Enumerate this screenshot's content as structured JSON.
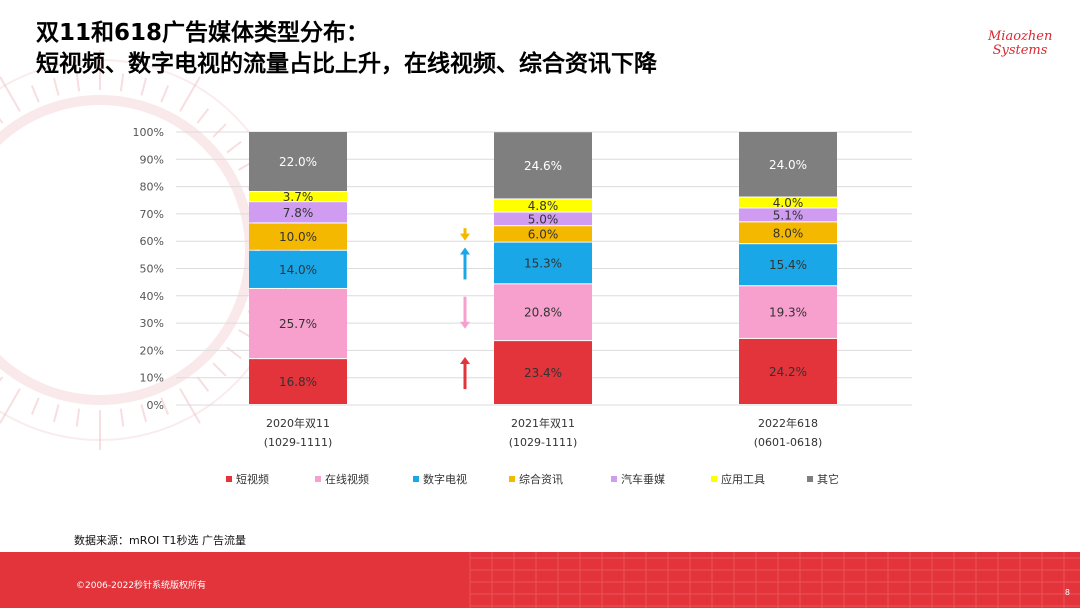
{
  "slide": {
    "title_line1": "双11和618广告媒体类型分布：",
    "title_line2": "短视频、数字电视的流量占比上升，在线视频、综合资讯下降",
    "logo_line1": "Miaozhen",
    "logo_line2": "Systems",
    "source": "数据来源：mROI T1秒选 广告流量",
    "copyright": "©2006-2022秒针系统版权所有",
    "page_number": "8"
  },
  "chart_data": {
    "type": "bar",
    "stacked": true,
    "percent": true,
    "ylim": [
      0,
      100
    ],
    "yticks": [
      0,
      10,
      20,
      30,
      40,
      50,
      60,
      70,
      80,
      90,
      100
    ],
    "ytick_labels": [
      "0%",
      "10%",
      "20%",
      "30%",
      "40%",
      "50%",
      "60%",
      "70%",
      "80%",
      "90%",
      "100%"
    ],
    "categories": [
      "2020年双11",
      "2021年双11",
      "2022年618"
    ],
    "category_sublabels": [
      "(1029-1111)",
      "(1029-1111)",
      "(0601-0618)"
    ],
    "series": [
      {
        "name": "短视频",
        "color": "#e2343a",
        "label_color": "#333333",
        "values": [
          16.8,
          23.4,
          24.2
        ],
        "labels": [
          "16.8%",
          "23.4%",
          "24.2%"
        ],
        "trend": "up"
      },
      {
        "name": "在线视频",
        "color": "#f7a0cd",
        "label_color": "#333333",
        "values": [
          25.7,
          20.8,
          19.3
        ],
        "labels": [
          "25.7%",
          "20.8%",
          "19.3%"
        ],
        "trend": "down"
      },
      {
        "name": "数字电视",
        "color": "#1aa7e8",
        "label_color": "#333333",
        "values": [
          14.0,
          15.3,
          15.4
        ],
        "labels": [
          "14.0%",
          "15.3%",
          "15.4%"
        ],
        "trend": "up"
      },
      {
        "name": "综合资讯",
        "color": "#f5b800",
        "label_color": "#333333",
        "values": [
          10.0,
          6.0,
          8.0
        ],
        "labels": [
          "10.0%",
          "6.0%",
          "8.0%"
        ],
        "trend": "down"
      },
      {
        "name": "汽车垂媒",
        "color": "#cf9cf2",
        "label_color": "#333333",
        "values": [
          7.8,
          5.0,
          5.1
        ],
        "labels": [
          "7.8%",
          "5.0%",
          "5.1%"
        ]
      },
      {
        "name": "应用工具",
        "color": "#ffff00",
        "label_color": "#333333",
        "values": [
          3.7,
          4.8,
          4.0
        ],
        "labels": [
          "3.7%",
          "4.8%",
          "4.0%"
        ]
      },
      {
        "name": "其它",
        "color": "#7f7f7f",
        "label_color": "#ffffff",
        "values": [
          22.0,
          24.6,
          24.0
        ],
        "labels": [
          "22.0%",
          "24.6%",
          "24.0%"
        ]
      }
    ],
    "legend_position": "bottom",
    "grid": true
  }
}
